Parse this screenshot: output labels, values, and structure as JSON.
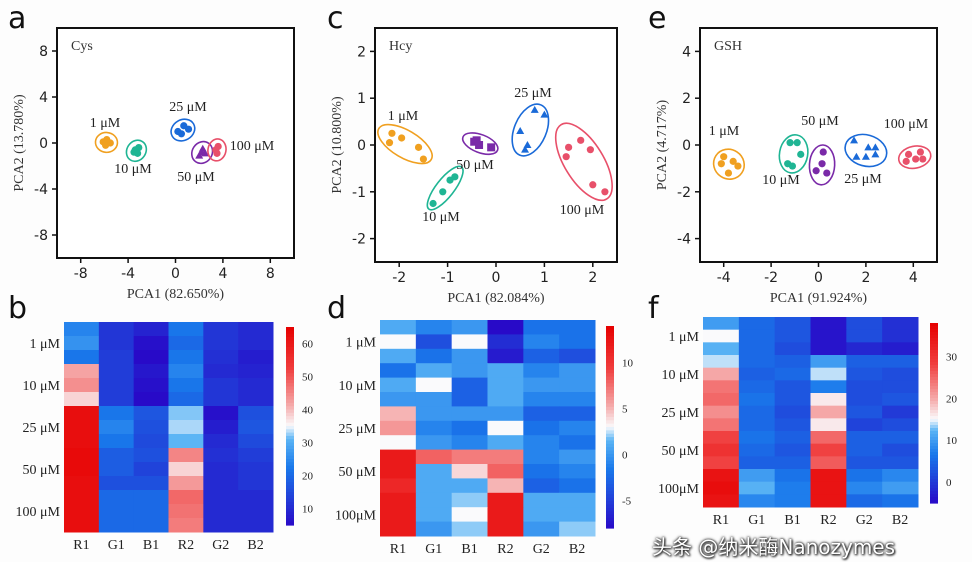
{
  "watermark": "头条 @纳米酶Nanozymes",
  "colors": {
    "1 μM": "#f0a020",
    "10 μM": "#1fb594",
    "25 μM": "#1a6ad8",
    "50 μM": "#7a2aa8",
    "100 μM": "#e8506a"
  },
  "chart_data": [
    {
      "panel": "a",
      "type": "scatter",
      "title": "Cys",
      "xlabel": "PCA1 (82.650%)",
      "ylabel": "PCA2 (13.780%)",
      "xlim": [
        -10,
        10
      ],
      "ylim": [
        -10,
        10
      ],
      "xticks": [
        -8,
        -4,
        0,
        4,
        8
      ],
      "yticks": [
        8,
        4,
        0,
        -4,
        -8
      ],
      "series": [
        {
          "name": "1 μM",
          "marker": "circle",
          "points": [
            [
              -6.1,
              0.1
            ],
            [
              -5.8,
              0.3
            ],
            [
              -5.5,
              0
            ],
            [
              -5.9,
              -0.2
            ]
          ]
        },
        {
          "name": "10 μM",
          "marker": "circle",
          "points": [
            [
              -3.4,
              -0.6
            ],
            [
              -3.1,
              -0.4
            ],
            [
              -3.2,
              -0.9
            ],
            [
              -3.5,
              -0.8
            ]
          ]
        },
        {
          "name": "25 μM",
          "marker": "circle",
          "points": [
            [
              0.2,
              1.0
            ],
            [
              0.7,
              1.5
            ],
            [
              1.1,
              1.2
            ],
            [
              0.5,
              0.8
            ]
          ]
        },
        {
          "name": "50 μM",
          "marker": "triangle",
          "points": [
            [
              2.0,
              -1.1
            ],
            [
              2.3,
              -0.5
            ],
            [
              2.5,
              -0.9
            ],
            [
              2.2,
              -0.8
            ]
          ]
        },
        {
          "name": "100 μM",
          "marker": "circle",
          "points": [
            [
              3.4,
              -0.6
            ],
            [
              3.6,
              -0.3
            ],
            [
              3.5,
              -0.9
            ]
          ]
        }
      ]
    },
    {
      "panel": "c",
      "type": "scatter",
      "title": "Hcy",
      "xlabel": "PCA1 (82.084%)",
      "ylabel": "PCA2 (10.800%)",
      "xlim": [
        -2.5,
        2.5
      ],
      "ylim": [
        -2.5,
        2.5
      ],
      "xticks": [
        -2,
        -1,
        0,
        1,
        2
      ],
      "yticks": [
        2,
        1,
        0,
        -1,
        -2
      ],
      "series": [
        {
          "name": "1 μM",
          "marker": "circle",
          "points": [
            [
              -2.15,
              0.25
            ],
            [
              -2.2,
              0.05
            ],
            [
              -1.95,
              0.15
            ],
            [
              -1.6,
              -0.05
            ],
            [
              -1.5,
              -0.3
            ]
          ]
        },
        {
          "name": "10 μM",
          "marker": "circle",
          "points": [
            [
              -1.3,
              -1.25
            ],
            [
              -1.1,
              -1.0
            ],
            [
              -0.95,
              -0.75
            ],
            [
              -0.85,
              -0.68
            ]
          ]
        },
        {
          "name": "50 μM",
          "marker": "square",
          "points": [
            [
              -0.45,
              0.07
            ],
            [
              -0.35,
              0.0
            ],
            [
              -0.1,
              -0.05
            ],
            [
              -0.4,
              0.1
            ]
          ]
        },
        {
          "name": "25 μM",
          "marker": "triangle",
          "points": [
            [
              0.5,
              0.3
            ],
            [
              0.8,
              0.75
            ],
            [
              1.0,
              0.65
            ],
            [
              0.65,
              0.0
            ],
            [
              0.6,
              -0.1
            ]
          ]
        },
        {
          "name": "100 μM",
          "marker": "circle",
          "points": [
            [
              1.45,
              -0.25
            ],
            [
              1.5,
              -0.05
            ],
            [
              1.75,
              0.1
            ],
            [
              1.95,
              -0.1
            ],
            [
              2.0,
              -0.85
            ],
            [
              2.25,
              -1.0
            ]
          ]
        }
      ]
    },
    {
      "panel": "e",
      "type": "scatter",
      "title": "GSH",
      "xlabel": "PCA1 (91.924%)",
      "ylabel": "PCA2 (4.717%)",
      "xlim": [
        -5,
        5
      ],
      "ylim": [
        -5,
        5
      ],
      "xticks": [
        -4,
        -2,
        0,
        2,
        4
      ],
      "yticks": [
        4,
        2,
        0,
        -2,
        -4
      ],
      "series": [
        {
          "name": "1 μM",
          "marker": "circle",
          "points": [
            [
              -4.0,
              -0.5
            ],
            [
              -3.6,
              -0.7
            ],
            [
              -3.8,
              -1.2
            ],
            [
              -3.4,
              -0.9
            ],
            [
              -4.1,
              -0.8
            ]
          ]
        },
        {
          "name": "10 μM",
          "marker": "circle",
          "points": [
            [
              -1.2,
              0.1
            ],
            [
              -0.9,
              0.1
            ],
            [
              -0.75,
              -0.4
            ],
            [
              -1.3,
              -0.8
            ],
            [
              -1.1,
              -0.9
            ]
          ]
        },
        {
          "name": "50 μM",
          "marker": "circle",
          "points": [
            [
              0.2,
              -0.3
            ],
            [
              0.15,
              -0.8
            ],
            [
              -0.1,
              -1.1
            ],
            [
              0.35,
              -1.2
            ]
          ]
        },
        {
          "name": "25 μM",
          "marker": "triangle",
          "points": [
            [
              1.5,
              0.2
            ],
            [
              2.1,
              -0.1
            ],
            [
              2.4,
              -0.1
            ],
            [
              1.6,
              -0.5
            ],
            [
              2.0,
              -0.5
            ],
            [
              2.4,
              -0.4
            ]
          ]
        },
        {
          "name": "100 μM",
          "marker": "circle",
          "points": [
            [
              3.8,
              -0.4
            ],
            [
              4.3,
              -0.3
            ],
            [
              4.1,
              -0.6
            ],
            [
              3.7,
              -0.7
            ],
            [
              4.4,
              -0.6
            ]
          ]
        }
      ]
    },
    {
      "panel": "b",
      "type": "heatmap",
      "columns": [
        "R1",
        "G1",
        "B1",
        "R2",
        "G2",
        "B2"
      ],
      "row_groups": [
        "1 μM",
        "10 μM",
        "25 μM",
        "50 μM",
        "100 μM"
      ],
      "colorbar": {
        "min": 5,
        "max": 65,
        "ticks": [
          60,
          50,
          40,
          30,
          20,
          10
        ],
        "mid": 35
      },
      "values": [
        [
          24,
          12,
          9,
          22,
          12,
          10
        ],
        [
          26,
          12,
          6,
          20,
          12,
          10
        ],
        [
          22,
          13,
          5,
          22,
          11,
          8
        ],
        [
          42,
          13,
          7,
          24,
          10,
          9
        ],
        [
          44,
          13,
          6,
          22,
          12,
          10
        ],
        [
          38,
          13,
          4,
          20,
          12,
          10
        ],
        [
          62,
          22,
          17,
          32,
          6,
          16
        ],
        [
          62,
          24,
          16,
          33,
          8,
          17
        ],
        [
          62,
          22,
          15,
          31,
          10,
          15
        ],
        [
          63,
          18,
          16,
          45,
          11,
          13
        ],
        [
          63,
          18,
          14,
          38,
          10,
          12
        ],
        [
          62,
          16,
          16,
          43,
          10,
          12
        ],
        [
          62,
          20,
          20,
          48,
          10,
          10
        ],
        [
          62,
          20,
          20,
          47,
          10,
          10
        ],
        [
          62,
          20,
          20,
          46,
          10,
          10
        ]
      ]
    },
    {
      "panel": "d",
      "type": "heatmap",
      "columns": [
        "R1",
        "G1",
        "B1",
        "R2",
        "G2",
        "B2"
      ],
      "row_groups": [
        "1 μM",
        "10 μM",
        "25 μM",
        "50 μM",
        "100μM"
      ],
      "colorbar": {
        "min": -8,
        "max": 14,
        "ticks": [
          10,
          5,
          0,
          -5
        ],
        "mid": 3
      },
      "values": [
        [
          1,
          -1,
          0,
          -8,
          -2,
          -2
        ],
        [
          3,
          -4,
          3,
          -6,
          -1,
          -2
        ],
        [
          1,
          -2,
          0,
          -7,
          -3,
          -4
        ],
        [
          -2,
          1,
          0,
          1,
          -1,
          0
        ],
        [
          1,
          3,
          -3,
          1,
          0,
          0
        ],
        [
          0,
          0,
          -3,
          1,
          -1,
          -1
        ],
        [
          5,
          0,
          0,
          0,
          -3,
          -3
        ],
        [
          6,
          -1,
          -2,
          3,
          -2,
          -1
        ],
        [
          3,
          0,
          -1,
          1,
          -1,
          -2
        ],
        [
          12,
          8,
          7,
          7,
          -1,
          0
        ],
        [
          12,
          1,
          4,
          8,
          -2,
          -1
        ],
        [
          11,
          1,
          1,
          5,
          -3,
          -2
        ],
        [
          12,
          1,
          2,
          12,
          1,
          1
        ],
        [
          12,
          1,
          3,
          12,
          1,
          1
        ],
        [
          12,
          0,
          2,
          12,
          0,
          2
        ]
      ]
    },
    {
      "panel": "f",
      "type": "heatmap",
      "columns": [
        "R1",
        "G1",
        "B1",
        "R2",
        "G2",
        "B2"
      ],
      "row_groups": [
        "1 μM",
        "10 μM",
        "25 μM",
        "50 μM",
        "100μM"
      ],
      "colorbar": {
        "min": -5,
        "max": 38,
        "ticks": [
          30,
          20,
          10,
          0
        ],
        "mid": 15
      },
      "values": [
        [
          10,
          5,
          3,
          -4,
          2,
          -1
        ],
        [
          15,
          5,
          3,
          -4,
          2,
          -1
        ],
        [
          12,
          5,
          2,
          -4,
          -2,
          -3
        ],
        [
          14,
          5,
          4,
          10,
          4,
          4
        ],
        [
          20,
          4,
          5,
          14,
          3,
          2
        ],
        [
          24,
          5,
          3,
          7,
          2,
          2
        ],
        [
          25,
          6,
          3,
          16,
          2,
          3
        ],
        [
          22,
          5,
          2,
          20,
          3,
          0
        ],
        [
          24,
          5,
          3,
          16,
          1,
          2
        ],
        [
          28,
          6,
          4,
          25,
          4,
          4
        ],
        [
          30,
          5,
          3,
          28,
          4,
          2
        ],
        [
          28,
          4,
          4,
          26,
          3,
          3
        ],
        [
          35,
          10,
          6,
          35,
          6,
          8
        ],
        [
          36,
          12,
          7,
          35,
          8,
          10
        ],
        [
          35,
          8,
          7,
          35,
          5,
          6
        ]
      ]
    }
  ]
}
